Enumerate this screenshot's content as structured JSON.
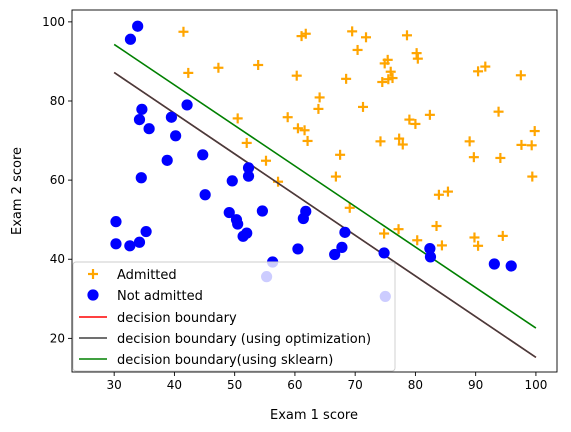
{
  "chart_data": {
    "type": "scatter",
    "title": "",
    "xlabel": "Exam 1 score",
    "ylabel": "Exam 2 score",
    "xlim": [
      23,
      103.5
    ],
    "ylim": [
      11.5,
      103
    ],
    "xticks": [
      30,
      40,
      50,
      60,
      70,
      80,
      90,
      100
    ],
    "yticks": [
      20,
      40,
      60,
      80,
      100
    ],
    "grid": false,
    "legend_position": "lower-left",
    "colors": {
      "admitted": "#ffa500",
      "not_admitted": "#0000ff",
      "boundary": "#ff0000",
      "boundary_opt": "#404040",
      "boundary_sklearn": "#008000"
    },
    "series": [
      {
        "name": "Admitted",
        "marker": "plus",
        "points": [
          [
            41.5,
            97.5
          ],
          [
            42.3,
            87.1
          ],
          [
            47.3,
            88.4
          ],
          [
            50.5,
            75.6
          ],
          [
            52.0,
            69.4
          ],
          [
            53.9,
            89.1
          ],
          [
            55.2,
            64.9
          ],
          [
            57.2,
            59.6
          ],
          [
            58.8,
            75.9
          ],
          [
            60.3,
            86.4
          ],
          [
            60.5,
            73.1
          ],
          [
            61.1,
            96.4
          ],
          [
            61.6,
            72.6
          ],
          [
            61.8,
            97.0
          ],
          [
            62.1,
            69.9
          ],
          [
            63.9,
            78.0
          ],
          [
            64.1,
            80.9
          ],
          [
            66.8,
            60.9
          ],
          [
            67.5,
            66.4
          ],
          [
            68.5,
            85.6
          ],
          [
            69.1,
            53.0
          ],
          [
            69.5,
            97.6
          ],
          [
            70.4,
            92.9
          ],
          [
            71.3,
            78.5
          ],
          [
            71.8,
            96.1
          ],
          [
            74.2,
            69.8
          ],
          [
            74.5,
            84.8
          ],
          [
            74.8,
            46.5
          ],
          [
            74.9,
            89.5
          ],
          [
            75.4,
            90.4
          ],
          [
            75.5,
            85.5
          ],
          [
            75.9,
            87.4
          ],
          [
            76.2,
            85.8
          ],
          [
            77.2,
            47.6
          ],
          [
            77.3,
            70.5
          ],
          [
            77.9,
            69.0
          ],
          [
            78.6,
            96.6
          ],
          [
            79.0,
            75.3
          ],
          [
            80.0,
            74.2
          ],
          [
            80.2,
            92.1
          ],
          [
            80.4,
            90.7
          ],
          [
            80.3,
            44.8
          ],
          [
            82.4,
            76.5
          ],
          [
            83.5,
            48.4
          ],
          [
            83.9,
            56.3
          ],
          [
            84.4,
            43.5
          ],
          [
            85.4,
            57.1
          ],
          [
            89.0,
            69.8
          ],
          [
            89.7,
            65.8
          ],
          [
            89.8,
            45.5
          ],
          [
            90.4,
            43.4
          ],
          [
            90.4,
            87.5
          ],
          [
            91.6,
            88.7
          ],
          [
            93.8,
            77.3
          ],
          [
            94.1,
            65.6
          ],
          [
            94.5,
            45.9
          ],
          [
            97.5,
            86.5
          ],
          [
            97.6,
            68.9
          ],
          [
            99.3,
            68.8
          ],
          [
            99.4,
            60.9
          ],
          [
            99.8,
            72.4
          ]
        ]
      },
      {
        "name": "Not admitted",
        "marker": "circle",
        "points": [
          [
            32.7,
            95.6
          ],
          [
            33.9,
            98.9
          ],
          [
            30.3,
            49.5
          ],
          [
            30.3,
            43.9
          ],
          [
            32.6,
            43.4
          ],
          [
            34.2,
            44.3
          ],
          [
            34.2,
            75.3
          ],
          [
            34.5,
            60.6
          ],
          [
            34.6,
            77.9
          ],
          [
            35.3,
            47.0
          ],
          [
            35.8,
            73.0
          ],
          [
            38.8,
            65.0
          ],
          [
            39.5,
            75.9
          ],
          [
            40.2,
            71.2
          ],
          [
            42.1,
            79.0
          ],
          [
            44.7,
            66.4
          ],
          [
            45.1,
            56.3
          ],
          [
            49.1,
            51.8
          ],
          [
            49.6,
            59.8
          ],
          [
            50.3,
            50.0
          ],
          [
            50.5,
            48.9
          ],
          [
            51.4,
            45.8
          ],
          [
            52.0,
            46.6
          ],
          [
            52.3,
            63.1
          ],
          [
            52.3,
            61.0
          ],
          [
            54.6,
            52.2
          ],
          [
            55.3,
            35.6
          ],
          [
            56.3,
            39.3
          ],
          [
            60.5,
            42.6
          ],
          [
            61.4,
            50.3
          ],
          [
            61.8,
            52.1
          ],
          [
            66.6,
            41.2
          ],
          [
            67.8,
            43.0
          ],
          [
            68.3,
            46.8
          ],
          [
            74.8,
            41.6
          ],
          [
            75.0,
            30.6
          ],
          [
            82.4,
            42.7
          ],
          [
            82.5,
            40.6
          ],
          [
            93.1,
            38.8
          ],
          [
            95.9,
            38.3
          ]
        ]
      }
    ],
    "lines": [
      {
        "name": "decision boundary",
        "x": [
          30,
          100
        ],
        "y": [
          87.2,
          15.2
        ]
      },
      {
        "name": "decision boundary (using optimization)",
        "x": [
          30,
          100
        ],
        "y": [
          87.2,
          15.2
        ]
      },
      {
        "name": "decision boundary(using sklearn)",
        "x": [
          30,
          100
        ],
        "y": [
          94.3,
          22.6
        ]
      }
    ]
  }
}
